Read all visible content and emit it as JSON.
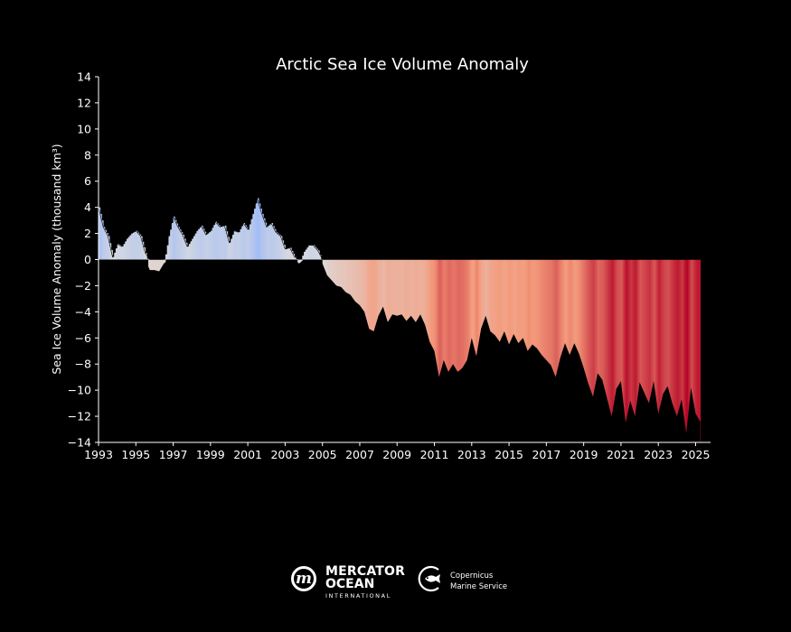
{
  "chart_data": {
    "type": "area",
    "title": "Arctic Sea Ice Volume Anomaly",
    "xlabel": "",
    "ylabel": "Sea Ice Volume Anomaly (thousand km³)",
    "xlim": [
      1993,
      2025.8
    ],
    "ylim": [
      -14,
      14
    ],
    "xticks": [
      1993,
      1995,
      1997,
      1999,
      2001,
      2003,
      2005,
      2007,
      2009,
      2011,
      2013,
      2015,
      2017,
      2019,
      2021,
      2023,
      2025
    ],
    "yticks": [
      -14,
      -12,
      -10,
      -8,
      -6,
      -4,
      -2,
      0,
      2,
      4,
      6,
      8,
      10,
      12,
      14
    ],
    "grid": false,
    "fill_colormap": "coolwarm (blue = positive anomaly, red = negative anomaly)",
    "background_color": "#000000",
    "anomaly_line_color": "#000000",
    "x": [
      1993.0,
      1993.25,
      1993.5,
      1993.75,
      1994.0,
      1994.25,
      1994.5,
      1994.75,
      1995.0,
      1995.25,
      1995.5,
      1995.75,
      1996.0,
      1996.25,
      1996.5,
      1996.75,
      1997.0,
      1997.25,
      1997.5,
      1997.75,
      1998.0,
      1998.25,
      1998.5,
      1998.75,
      1999.0,
      1999.25,
      1999.5,
      1999.75,
      2000.0,
      2000.25,
      2000.5,
      2000.75,
      2001.0,
      2001.25,
      2001.5,
      2001.75,
      2002.0,
      2002.25,
      2002.5,
      2002.75,
      2003.0,
      2003.25,
      2003.5,
      2003.75,
      2004.0,
      2004.25,
      2004.5,
      2004.75,
      2005.0,
      2005.25,
      2005.5,
      2005.75,
      2006.0,
      2006.25,
      2006.5,
      2006.75,
      2007.0,
      2007.25,
      2007.5,
      2007.75,
      2008.0,
      2008.25,
      2008.5,
      2008.75,
      2009.0,
      2009.25,
      2009.5,
      2009.75,
      2010.0,
      2010.25,
      2010.5,
      2010.75,
      2011.0,
      2011.25,
      2011.5,
      2011.75,
      2012.0,
      2012.25,
      2012.5,
      2012.75,
      2013.0,
      2013.25,
      2013.5,
      2013.75,
      2014.0,
      2014.25,
      2014.5,
      2014.75,
      2015.0,
      2015.25,
      2015.5,
      2015.75,
      2016.0,
      2016.25,
      2016.5,
      2016.75,
      2017.0,
      2017.25,
      2017.5,
      2017.75,
      2018.0,
      2018.25,
      2018.5,
      2018.75,
      2019.0,
      2019.25,
      2019.5,
      2019.75,
      2020.0,
      2020.25,
      2020.5,
      2020.75,
      2021.0,
      2021.25,
      2021.5,
      2021.75,
      2022.0,
      2022.25,
      2022.5,
      2022.75,
      2023.0,
      2023.25,
      2023.5,
      2023.75,
      2024.0,
      2024.25,
      2024.5,
      2024.75,
      2025.0,
      2025.25
    ],
    "values": [
      4.0,
      2.5,
      1.8,
      0.2,
      1.2,
      1.0,
      1.6,
      2.0,
      2.2,
      1.8,
      0.5,
      -0.8,
      -0.8,
      -0.9,
      -0.3,
      1.8,
      3.3,
      2.5,
      1.9,
      1.0,
      1.6,
      2.2,
      2.6,
      1.9,
      2.2,
      2.9,
      2.5,
      2.6,
      1.3,
      2.2,
      2.1,
      2.8,
      2.3,
      3.5,
      4.7,
      3.5,
      2.5,
      2.8,
      2.1,
      1.8,
      0.8,
      0.9,
      0.2,
      -0.3,
      0.6,
      1.1,
      1.1,
      0.7,
      -0.3,
      -1.2,
      -1.6,
      -2.0,
      -2.1,
      -2.5,
      -2.7,
      -3.2,
      -3.5,
      -4.0,
      -5.3,
      -5.5,
      -4.3,
      -3.6,
      -4.8,
      -4.2,
      -4.3,
      -4.2,
      -4.7,
      -4.3,
      -4.8,
      -4.2,
      -5.0,
      -6.3,
      -7.0,
      -9.0,
      -7.7,
      -8.6,
      -8.0,
      -8.6,
      -8.3,
      -7.7,
      -6.0,
      -7.4,
      -5.3,
      -4.3,
      -5.5,
      -5.8,
      -6.3,
      -5.5,
      -6.5,
      -5.7,
      -6.4,
      -6.0,
      -7.0,
      -6.5,
      -6.8,
      -7.3,
      -7.7,
      -8.1,
      -9.0,
      -7.5,
      -6.4,
      -7.3,
      -6.4,
      -7.2,
      -8.3,
      -9.5,
      -10.5,
      -8.7,
      -9.2,
      -10.6,
      -12.0,
      -9.9,
      -9.3,
      -12.5,
      -10.8,
      -12.0,
      -9.4,
      -10.2,
      -11.0,
      -9.3,
      -11.8,
      -10.3,
      -9.7,
      -11.0,
      -12.0,
      -10.7,
      -13.3,
      -9.8,
      -11.8,
      -12.4
    ]
  },
  "logos": {
    "mercator": {
      "line1": "MERCATOR",
      "line2": "OCEAN",
      "line3": "INTERNATIONAL",
      "mark": "m",
      "icon": "mercator-ocean-logo"
    },
    "copernicus": {
      "line1": "Copernicus",
      "line2": "Marine Service",
      "icon": "copernicus-marine-fish-logo"
    }
  }
}
